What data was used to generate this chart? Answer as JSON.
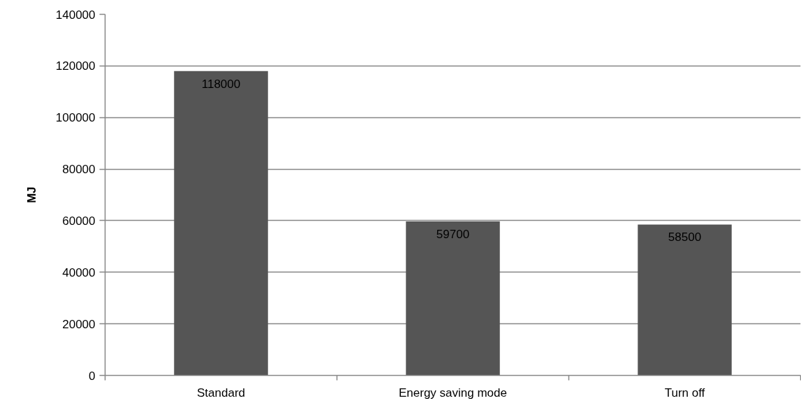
{
  "chart_data": {
    "type": "bar",
    "ylabel": "MJ",
    "categories": [
      "Standard",
      "Energy saving mode",
      "Turn off"
    ],
    "values": [
      118000,
      59700,
      58500
    ],
    "color": "#555555",
    "ylim": [
      0,
      140000
    ],
    "yticks": [
      0,
      20000,
      40000,
      60000,
      80000,
      100000,
      120000,
      140000
    ],
    "grid": "y",
    "data_labels": true
  }
}
